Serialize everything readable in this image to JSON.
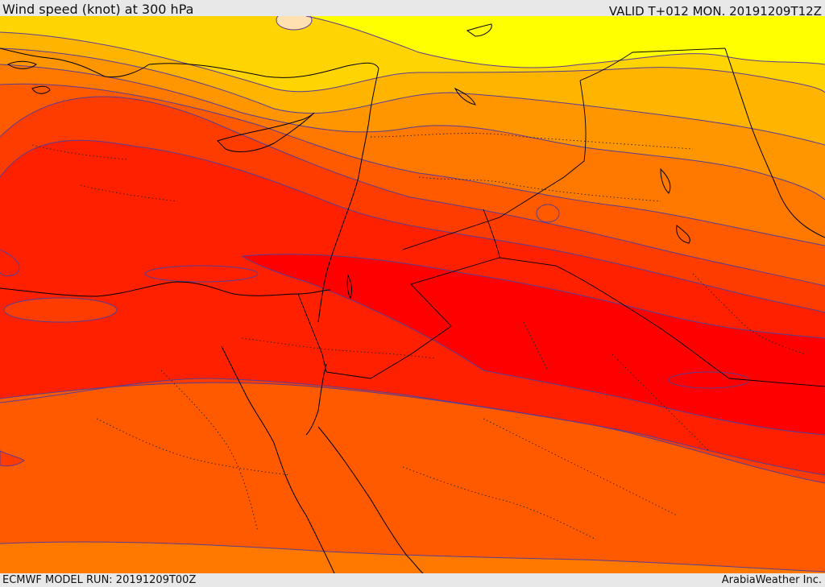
{
  "header": {
    "title": "Wind speed (knot) at 300 hPa",
    "valid": "VALID T+012 MON. 20191209T12Z"
  },
  "footer": {
    "model_run": "ECMWF MODEL RUN: 20191209T00Z",
    "credit": "ArabiaWeather Inc."
  },
  "map": {
    "field": "Wind speed at 300 hPa",
    "colors": {
      "band_1": "#ffff00",
      "band_2": "#ffd400",
      "band_3": "#ffb400",
      "band_4": "#ff9600",
      "band_5": "#ff7800",
      "band_6": "#ff5a00",
      "band_7": "#ff3c00",
      "band_8": "#ff2000",
      "band_9": "#ff0000",
      "contour_line": "#5b3d8f",
      "coastline": "#000000"
    }
  }
}
